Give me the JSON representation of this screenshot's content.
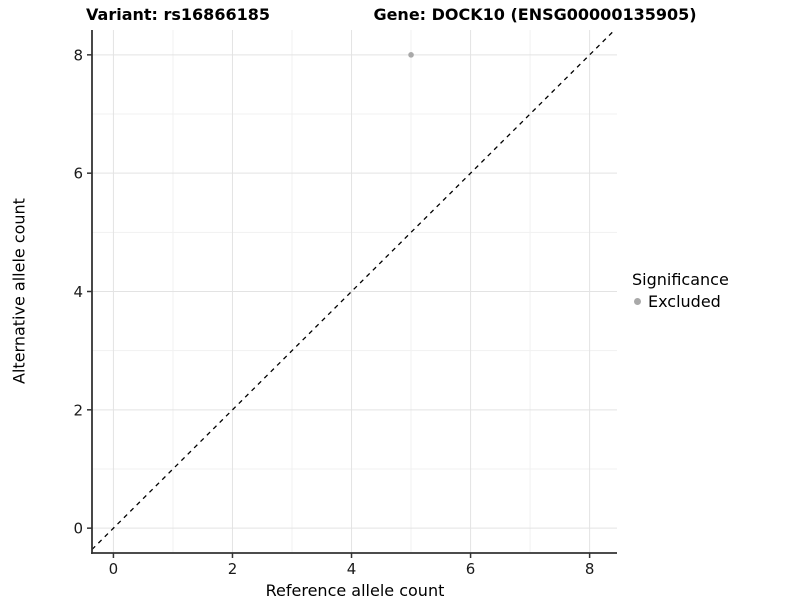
{
  "chart_data": {
    "type": "scatter",
    "title_left": "Variant: rs16866185",
    "title_right": "Gene: DOCK10 (ENSG00000135905)",
    "xlabel": "Reference allele count",
    "ylabel": "Alternative allele count",
    "xlim": [
      -0.36,
      8.46
    ],
    "ylim": [
      -0.42,
      8.42
    ],
    "x_ticks": [
      0,
      2,
      4,
      6,
      8
    ],
    "y_ticks": [
      0,
      2,
      4,
      6,
      8
    ],
    "x_minor_gridlines": [
      1,
      3,
      5,
      7
    ],
    "y_minor_gridlines": [
      1,
      3,
      5,
      7
    ],
    "grid": true,
    "identity_line": {
      "style": "dashed",
      "equation": "y = x",
      "from": -0.42,
      "to": 8.46
    },
    "series": [
      {
        "name": "Excluded",
        "color": "#a9a9a9",
        "points": [
          {
            "x": 5,
            "y": 8
          }
        ]
      }
    ],
    "legend": {
      "position": "right",
      "title": "Significance",
      "items": [
        {
          "label": "Excluded",
          "color": "#a9a9a9"
        }
      ]
    },
    "colors": {
      "background": "#ffffff",
      "grid_major": "#e3e3e3",
      "grid_minor": "#f1f1f1",
      "axis_line": "#333333",
      "tick_text": "#1a1a1a",
      "dashed_line": "#000000",
      "point": "#a9a9a9"
    }
  }
}
